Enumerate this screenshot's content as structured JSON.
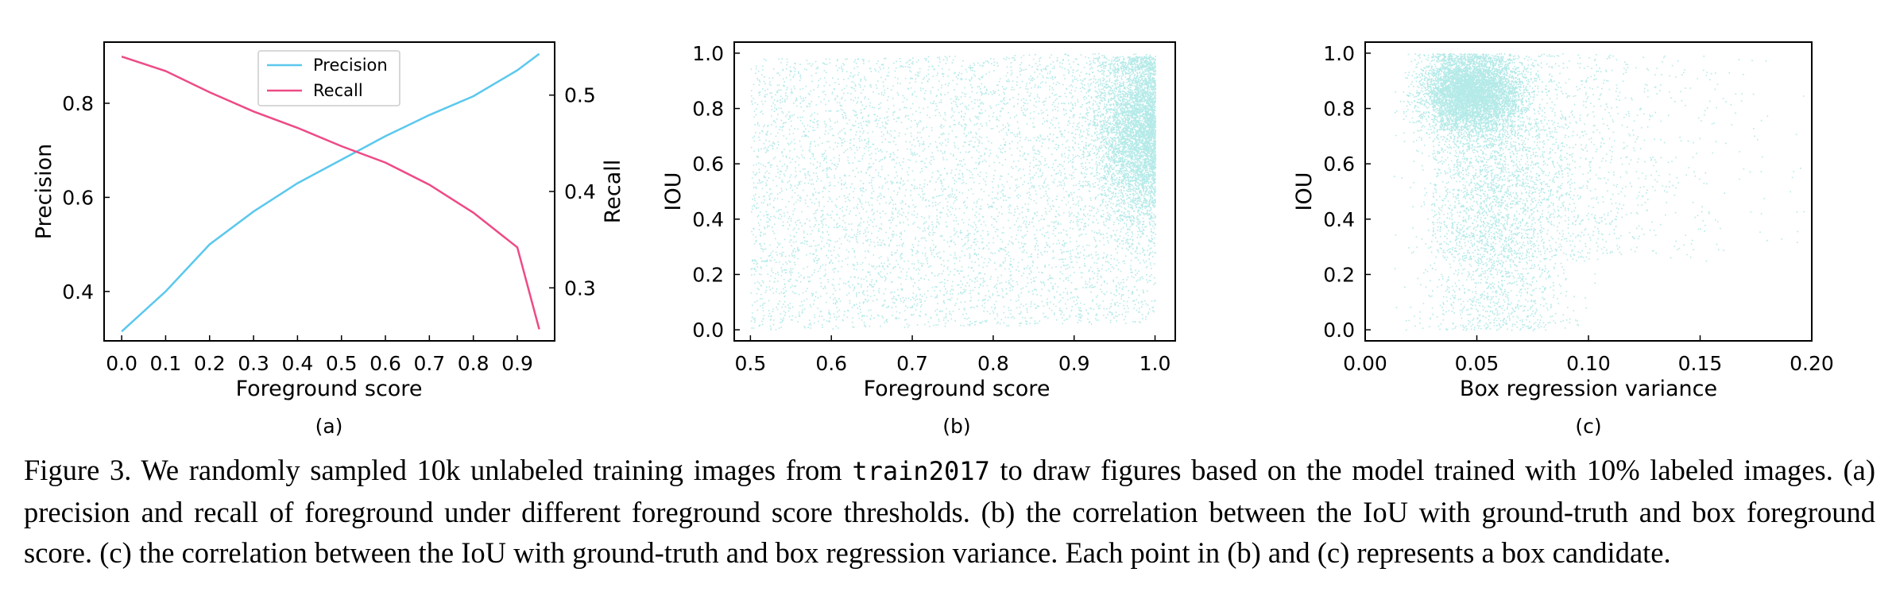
{
  "chart_data": [
    {
      "type": "line",
      "panel": "(a)",
      "xlabel": "Foreground score",
      "ylabel_left": "Precision",
      "ylabel_right": "Recall",
      "xticks": [
        "0.0",
        "0.1",
        "0.2",
        "0.3",
        "0.4",
        "0.5",
        "0.6",
        "0.7",
        "0.8",
        "0.9"
      ],
      "xlim": [
        -0.04,
        0.985
      ],
      "ylim_left": [
        0.295,
        0.93
      ],
      "ylim_right": [
        0.245,
        0.555
      ],
      "yticks_left": [
        "0.4",
        "0.6",
        "0.8"
      ],
      "yticks_right": [
        "0.3",
        "0.4",
        "0.5"
      ],
      "legend_position": "top-center",
      "x": [
        0.0,
        0.1,
        0.2,
        0.3,
        0.4,
        0.5,
        0.6,
        0.7,
        0.8,
        0.9,
        0.95
      ],
      "series": [
        {
          "name": "Precision",
          "axis": "left",
          "color": "#5bc8ee",
          "values": [
            0.315,
            0.4,
            0.5,
            0.57,
            0.63,
            0.68,
            0.73,
            0.775,
            0.815,
            0.87,
            0.905
          ]
        },
        {
          "name": "Recall",
          "axis": "right",
          "color": "#ee4a86",
          "values": [
            0.54,
            0.525,
            0.503,
            0.483,
            0.466,
            0.447,
            0.43,
            0.407,
            0.378,
            0.342,
            0.257
          ]
        }
      ]
    },
    {
      "type": "scatter",
      "panel": "(b)",
      "xlabel": "Foreground score",
      "ylabel": "IOU",
      "xticks": [
        "0.5",
        "0.6",
        "0.7",
        "0.8",
        "0.9",
        "1.0"
      ],
      "yticks": [
        "0.0",
        "0.2",
        "0.4",
        "0.6",
        "0.8",
        "1.0"
      ],
      "xlim": [
        0.48,
        1.025
      ],
      "ylim": [
        -0.04,
        1.04
      ],
      "color": "#6ad6d2",
      "n_points": 10000
    },
    {
      "type": "scatter",
      "panel": "(c)",
      "xlabel": "Box regression variance",
      "ylabel": "IOU",
      "xticks": [
        "0.00",
        "0.05",
        "0.10",
        "0.15",
        "0.20"
      ],
      "yticks": [
        "0.0",
        "0.2",
        "0.4",
        "0.6",
        "0.8",
        "1.0"
      ],
      "xlim": [
        0.0,
        0.2
      ],
      "ylim": [
        -0.04,
        1.04
      ],
      "color": "#6ad6d2",
      "n_points": 10000
    }
  ],
  "caption": {
    "prefix": "Figure 3. We randomly sampled 10k unlabeled training images from ",
    "code": "train2017",
    "suffix": " to draw figures based on the model trained with 10% labeled images. (a) precision and recall of foreground under different foreground score thresholds. (b) the correlation between the IoU with ground-truth and box foreground score. (c) the correlation between the IoU with ground-truth and box regression variance. Each point in (b) and (c) represents a box candidate."
  }
}
